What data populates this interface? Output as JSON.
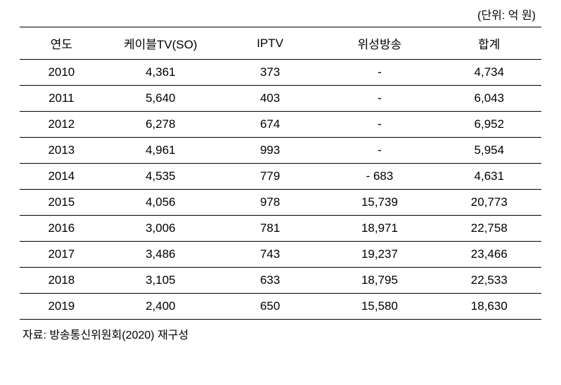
{
  "unit_label": "(단위: 억 원)",
  "table": {
    "columns": [
      {
        "key": "year",
        "label": "연도",
        "class": "col-year"
      },
      {
        "key": "cable",
        "label": "케이블TV(SO)",
        "class": "col-cable"
      },
      {
        "key": "iptv",
        "label": "IPTV",
        "class": "col-iptv"
      },
      {
        "key": "satellite",
        "label": "위성방송",
        "class": "col-satellite"
      },
      {
        "key": "total",
        "label": "합계",
        "class": "col-total"
      }
    ],
    "rows": [
      {
        "year": "2010",
        "cable": "4,361",
        "iptv": "373",
        "satellite": "-",
        "total": "4,734"
      },
      {
        "year": "2011",
        "cable": "5,640",
        "iptv": "403",
        "satellite": "-",
        "total": "6,043"
      },
      {
        "year": "2012",
        "cable": "6,278",
        "iptv": "674",
        "satellite": "-",
        "total": "6,952"
      },
      {
        "year": "2013",
        "cable": "4,961",
        "iptv": "993",
        "satellite": "-",
        "total": "5,954"
      },
      {
        "year": "2014",
        "cable": "4,535",
        "iptv": "779",
        "satellite": "- 683",
        "total": "4,631"
      },
      {
        "year": "2015",
        "cable": "4,056",
        "iptv": "978",
        "satellite": "15,739",
        "total": "20,773"
      },
      {
        "year": "2016",
        "cable": "3,006",
        "iptv": "781",
        "satellite": "18,971",
        "total": "22,758"
      },
      {
        "year": "2017",
        "cable": "3,486",
        "iptv": "743",
        "satellite": "19,237",
        "total": "23,466"
      },
      {
        "year": "2018",
        "cable": "3,105",
        "iptv": "633",
        "satellite": "18,795",
        "total": "22,533"
      },
      {
        "year": "2019",
        "cable": "2,400",
        "iptv": "650",
        "satellite": "15,580",
        "total": "18,630"
      }
    ]
  },
  "source_note": "자료: 방송통신위원회(2020) 재구성",
  "styling": {
    "font_family": "Malgun Gothic",
    "header_fontsize": 17,
    "cell_fontsize": 17,
    "unit_fontsize": 16,
    "source_fontsize": 16,
    "text_color": "#000000",
    "background_color": "#ffffff",
    "border_top_width": 1.5,
    "border_row_width": 1,
    "border_bottom_width": 1.5,
    "border_color": "#000000",
    "text_align": "center"
  }
}
